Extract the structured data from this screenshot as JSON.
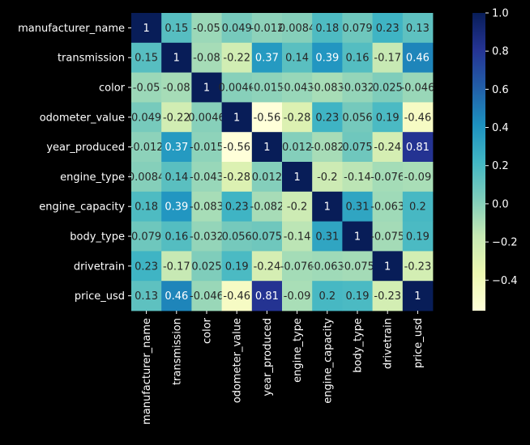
{
  "chart_data": {
    "type": "heatmap",
    "title": "",
    "xlabel": "",
    "ylabel": "",
    "variables": [
      "manufacturer_name",
      "transmission",
      "color",
      "odometer_value",
      "year_produced",
      "engine_type",
      "engine_capacity",
      "body_type",
      "drivetrain",
      "price_usd"
    ],
    "matrix": [
      [
        1,
        0.15,
        -0.05,
        0.049,
        -0.012,
        0.0084,
        0.18,
        0.079,
        0.23,
        0.13
      ],
      [
        0.15,
        1,
        -0.08,
        -0.22,
        0.37,
        0.14,
        0.39,
        0.16,
        -0.17,
        0.46
      ],
      [
        -0.05,
        -0.08,
        1,
        0.0046,
        -0.015,
        -0.043,
        -0.083,
        -0.032,
        0.025,
        -0.046
      ],
      [
        0.049,
        -0.22,
        0.0046,
        1,
        -0.56,
        -0.28,
        0.23,
        0.056,
        0.19,
        -0.46
      ],
      [
        -0.012,
        0.37,
        -0.015,
        -0.56,
        1,
        0.012,
        -0.082,
        0.075,
        -0.24,
        0.81
      ],
      [
        0.0084,
        0.14,
        -0.043,
        -0.28,
        0.012,
        1,
        -0.2,
        -0.14,
        -0.076,
        -0.09
      ],
      [
        0.18,
        0.39,
        -0.083,
        0.23,
        -0.082,
        -0.2,
        1,
        0.31,
        -0.063,
        0.2
      ],
      [
        0.079,
        0.16,
        -0.032,
        0.056,
        0.075,
        -0.14,
        0.31,
        1,
        -0.075,
        0.19
      ],
      [
        0.23,
        -0.17,
        0.025,
        0.19,
        -0.24,
        -0.076,
        -0.063,
        -0.075,
        1,
        -0.23
      ],
      [
        0.13,
        0.46,
        -0.046,
        -0.46,
        0.81,
        -0.09,
        0.2,
        0.19,
        -0.23,
        1
      ]
    ],
    "cell_labels": [
      [
        "1",
        "0.15",
        "-0.05",
        "0.049",
        "-0.012",
        "0.0084",
        "0.18",
        "0.079",
        "0.23",
        "0.13"
      ],
      [
        "0.15",
        "1",
        "-0.08",
        "-0.22",
        "0.37",
        "0.14",
        "0.39",
        "0.16",
        "-0.17",
        "0.46"
      ],
      [
        "-0.05",
        "-0.08",
        "1",
        "0.0046",
        "-0.015",
        "-0.043",
        "-0.083",
        "-0.032",
        "0.025",
        "-0.046"
      ],
      [
        "0.049",
        "-0.22",
        "0.0046",
        "1",
        "-0.56",
        "-0.28",
        "0.23",
        "0.056",
        "0.19",
        "-0.46"
      ],
      [
        "-0.012",
        "0.37",
        "-0.015",
        "-0.56",
        "1",
        "0.012",
        "-0.082",
        "0.075",
        "-0.24",
        "0.81"
      ],
      [
        "0.0084",
        "0.14",
        "-0.043",
        "-0.28",
        "0.012",
        "1",
        "-0.2",
        "-0.14",
        "-0.076",
        "-0.09"
      ],
      [
        "0.18",
        "0.39",
        "-0.083",
        "0.23",
        "-0.082",
        "-0.2",
        "1",
        "0.31",
        "-0.063",
        "0.2"
      ],
      [
        "0.079",
        "0.16",
        "-0.032",
        "0.056",
        "0.075",
        "-0.14",
        "0.31",
        "1",
        "-0.075",
        "0.19"
      ],
      [
        "0.23",
        "-0.17",
        "0.025",
        "0.19",
        "-0.24",
        "-0.076",
        "-0.063",
        "-0.075",
        "1",
        "-0.23"
      ],
      [
        "0.13",
        "0.46",
        "-0.046",
        "-0.46",
        "0.81",
        "-0.09",
        "0.2",
        "0.19",
        "-0.23",
        "1"
      ]
    ],
    "colormap": "YlGnBu",
    "color_range": [
      -0.56,
      1.0
    ],
    "colorbar": {
      "ticks": [
        -0.4,
        -0.2,
        0.0,
        0.2,
        0.4,
        0.6,
        0.8,
        1.0
      ],
      "tick_labels": [
        "−0.4",
        "−0.2",
        "0.0",
        "0.2",
        "0.4",
        "0.6",
        "0.8",
        "1.0"
      ],
      "placement": "right"
    },
    "background_color": "#000000",
    "text_color": "#ffffff",
    "annotation_dark_text": "#262626",
    "annotation_light_text": "#ffffff"
  }
}
